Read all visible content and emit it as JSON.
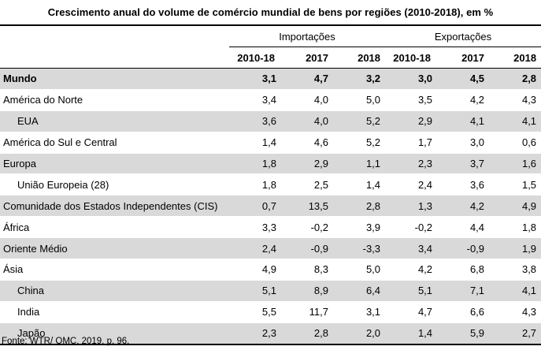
{
  "title": "Crescimento anual do volume de comércio mundial de bens por regiões (2010-2018), em %",
  "groups": {
    "imports": "Importações",
    "exports": "Exportações"
  },
  "years": [
    "2010-18",
    "2017",
    "2018",
    "2010-18",
    "2017",
    "2018"
  ],
  "rows": [
    {
      "name": "Mundo",
      "values": [
        "3,1",
        "4,7",
        "3,2",
        "3,0",
        "4,5",
        "2,8"
      ],
      "shade": true,
      "bold": true,
      "indent": false
    },
    {
      "name": "América do Norte",
      "values": [
        "3,4",
        "4,0",
        "5,0",
        "3,5",
        "4,2",
        "4,3"
      ],
      "shade": false,
      "bold": false,
      "indent": false
    },
    {
      "name": "EUA",
      "values": [
        "3,6",
        "4,0",
        "5,2",
        "2,9",
        "4,1",
        "4,1"
      ],
      "shade": true,
      "bold": false,
      "indent": true
    },
    {
      "name": "América do Sul e Central",
      "values": [
        "1,4",
        "4,6",
        "5,2",
        "1,7",
        "3,0",
        "0,6"
      ],
      "shade": false,
      "bold": false,
      "indent": false
    },
    {
      "name": "Europa",
      "values": [
        "1,8",
        "2,9",
        "1,1",
        "2,3",
        "3,7",
        "1,6"
      ],
      "shade": true,
      "bold": false,
      "indent": false
    },
    {
      "name": "União Europeia (28)",
      "values": [
        "1,8",
        "2,5",
        "1,4",
        "2,4",
        "3,6",
        "1,5"
      ],
      "shade": false,
      "bold": false,
      "indent": true
    },
    {
      "name": "Comunidade dos Estados Independentes (CIS)",
      "values": [
        "0,7",
        "13,5",
        "2,8",
        "1,3",
        "4,2",
        "4,9"
      ],
      "shade": true,
      "bold": false,
      "indent": false
    },
    {
      "name": "África",
      "values": [
        "3,3",
        "-0,2",
        "3,9",
        "-0,2",
        "4,4",
        "1,8"
      ],
      "shade": false,
      "bold": false,
      "indent": false
    },
    {
      "name": "Oriente Médio",
      "values": [
        "2,4",
        "-0,9",
        "-3,3",
        "3,4",
        "-0,9",
        "1,9"
      ],
      "shade": true,
      "bold": false,
      "indent": false
    },
    {
      "name": "Ásia",
      "values": [
        "4,9",
        "8,3",
        "5,0",
        "4,2",
        "6,8",
        "3,8"
      ],
      "shade": false,
      "bold": false,
      "indent": false
    },
    {
      "name": "China",
      "values": [
        "5,1",
        "8,9",
        "6,4",
        "5,1",
        "7,1",
        "4,1"
      ],
      "shade": true,
      "bold": false,
      "indent": true
    },
    {
      "name": "India",
      "values": [
        "5,5",
        "11,7",
        "3,1",
        "4,7",
        "6,6",
        "4,3"
      ],
      "shade": false,
      "bold": false,
      "indent": true
    },
    {
      "name": "Japão",
      "values": [
        "2,3",
        "2,8",
        "2,0",
        "1,4",
        "5,9",
        "2,7"
      ],
      "shade": true,
      "bold": false,
      "indent": true
    }
  ],
  "footnote": "Fonte: WTR/ OMC, 2019, p. 96."
}
